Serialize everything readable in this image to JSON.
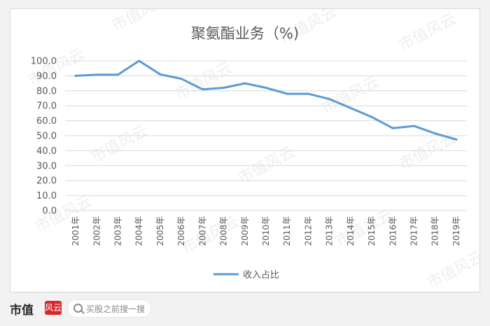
{
  "chart_data": {
    "type": "line",
    "title": "聚氨酯业务（%)",
    "categories": [
      "2001年",
      "2002年",
      "2003年",
      "2004年",
      "2005年",
      "2006年",
      "2007年",
      "2008年",
      "2009年",
      "2010年",
      "2011年",
      "2012年",
      "2013年",
      "2014年",
      "2015年",
      "2016年",
      "2017年",
      "2018年",
      "2019年"
    ],
    "series": [
      {
        "name": "收入占比",
        "color": "#5b9bd5",
        "values": [
          90.0,
          90.8,
          90.8,
          100.0,
          91.0,
          88.0,
          81.0,
          82.0,
          85.0,
          82.0,
          78.0,
          78.0,
          74.5,
          68.5,
          62.5,
          55.0,
          56.5,
          51.5,
          47.5
        ]
      }
    ],
    "ylim": [
      0,
      100
    ],
    "yticks": [
      "0.0",
      "10.0",
      "20.0",
      "30.0",
      "40.0",
      "50.0",
      "60.0",
      "70.0",
      "80.0",
      "90.0",
      "100.0"
    ],
    "ytick_values": [
      0,
      10,
      20,
      30,
      40,
      50,
      60,
      70,
      80,
      90,
      100
    ],
    "grid": true,
    "legend_position": "bottom"
  },
  "watermark": "市值风云",
  "footer": {
    "brand": "市值",
    "brand_mark": "风云",
    "search_placeholder": "买股之前搜一搜"
  }
}
